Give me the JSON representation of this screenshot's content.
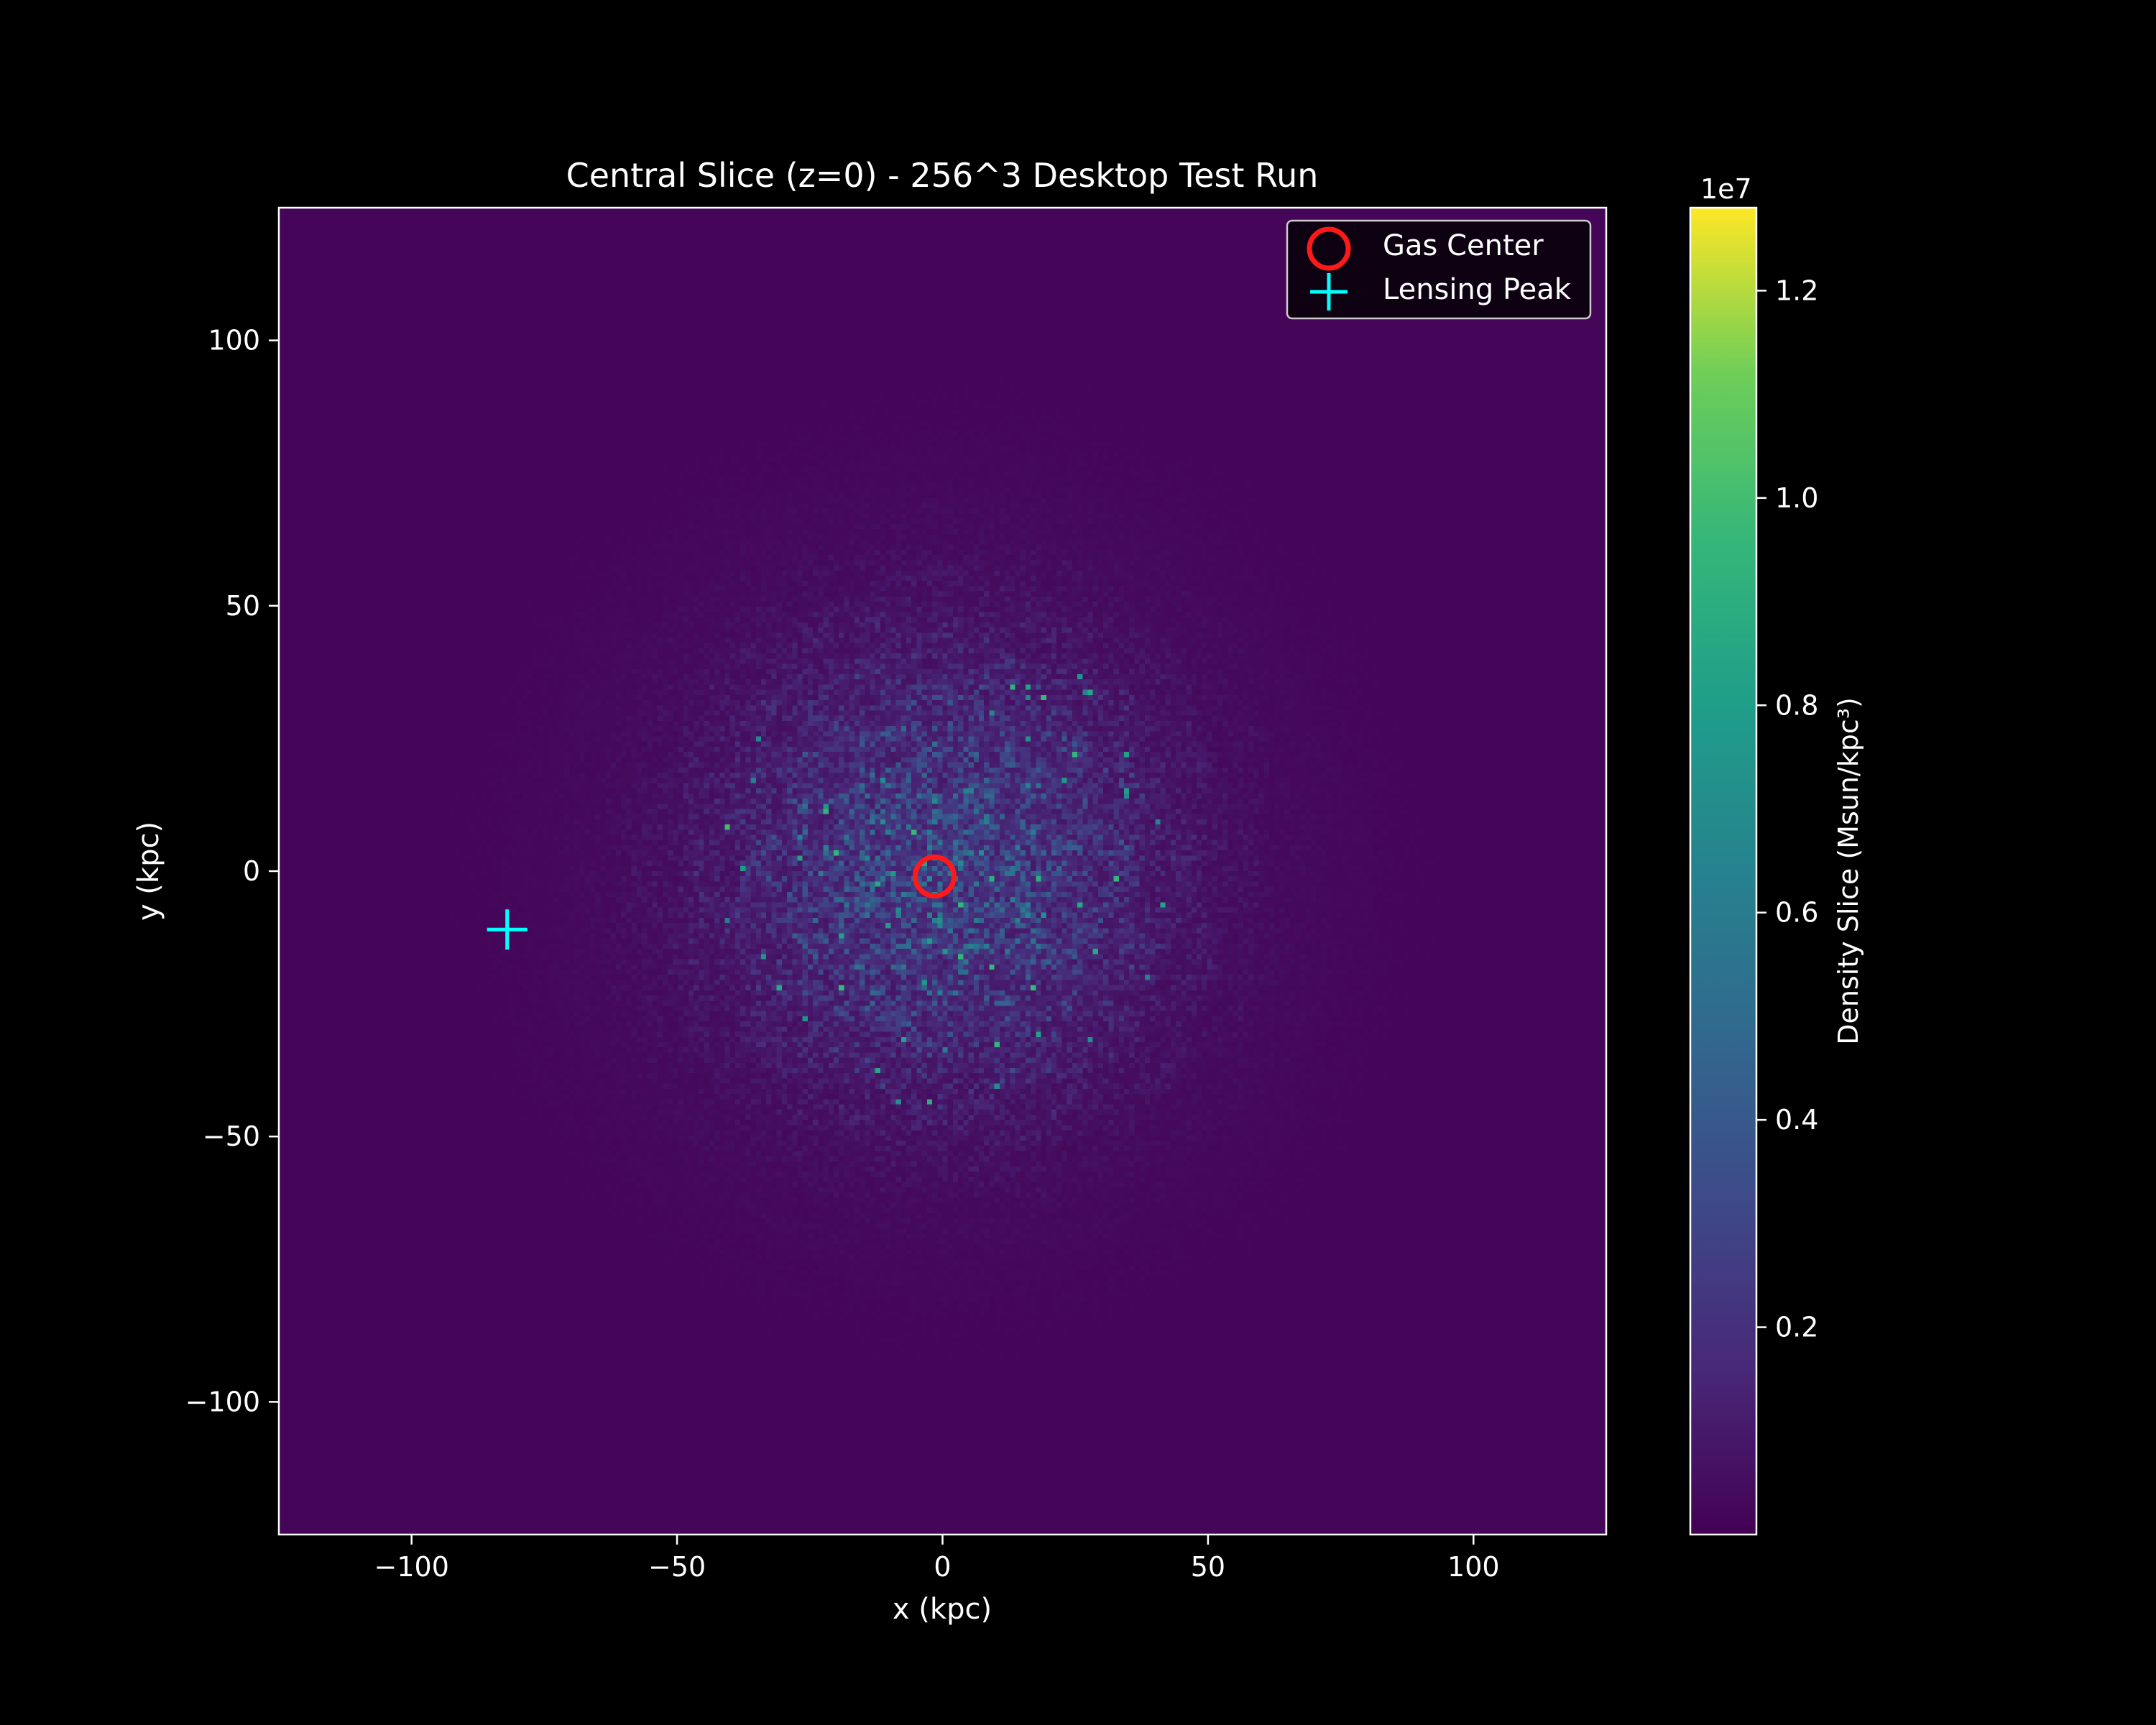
{
  "chart_data": {
    "type": "heatmap",
    "title": "Central Slice (z=0) - 256^3 Desktop Test Run",
    "xlabel": "x (kpc)",
    "ylabel": "y (kpc)",
    "xlim": [
      -125,
      125
    ],
    "ylim": [
      -125,
      125
    ],
    "xticks": [
      -100,
      -50,
      0,
      50,
      100
    ],
    "yticks": [
      -100,
      -50,
      0,
      50,
      100
    ],
    "xtick_labels": [
      "−100",
      "−50",
      "0",
      "50",
      "100"
    ],
    "ytick_labels": [
      "−100",
      "−50",
      "0",
      "50",
      "100"
    ],
    "grid": false,
    "grid_size": 256,
    "colormap": "viridis",
    "colorbar": {
      "label": "Density Slice (Msun/kpc³)",
      "offset_label": "1e7",
      "range": [
        0.0,
        1.28
      ],
      "ticks": [
        0.2,
        0.4,
        0.6,
        0.8,
        1.0,
        1.2
      ],
      "tick_labels": [
        "0.2",
        "0.4",
        "0.6",
        "0.8",
        "1.0",
        "1.2"
      ]
    },
    "field": {
      "center": [
        0,
        0
      ],
      "core_scale_kpc": 38,
      "peak_value": 0.9,
      "background_value": 0.02,
      "noise": "speckled, ring-like interference pattern about the center"
    },
    "markers": [
      {
        "name": "Gas Center",
        "x": -1.5,
        "y": -1,
        "symbol": "circle",
        "color": "#ff1a1a"
      },
      {
        "name": "Lensing Peak",
        "x": -82,
        "y": -11,
        "symbol": "plus",
        "color": "#00ffff"
      }
    ],
    "legend": {
      "placement": "upper right",
      "entries": [
        "Gas Center",
        "Lensing Peak"
      ]
    }
  }
}
